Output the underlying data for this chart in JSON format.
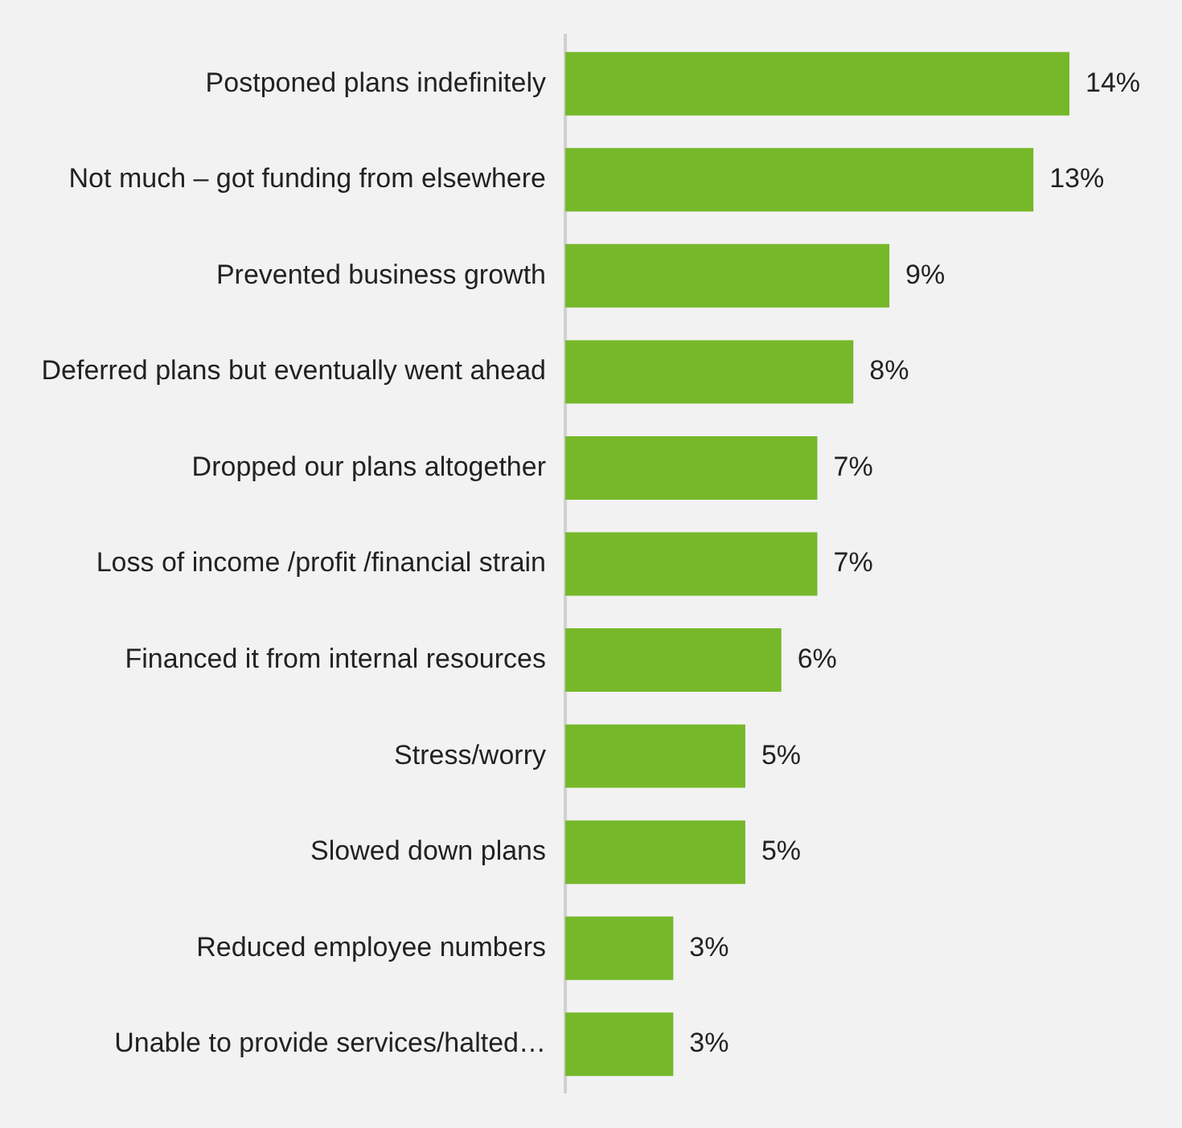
{
  "chart_data": {
    "type": "bar",
    "orientation": "horizontal",
    "categories": [
      "Postponed plans indefinitely",
      "Not much – got funding from elsewhere",
      "Prevented business growth",
      "Deferred plans but eventually went ahead",
      "Dropped our plans altogether",
      "Loss of income /profit /financial strain",
      "Financed it from internal resources",
      "Stress/worry",
      "Slowed down plans",
      "Reduced employee numbers",
      "Unable to provide services/halted…"
    ],
    "values": [
      14,
      13,
      9,
      8,
      7,
      7,
      6,
      5,
      5,
      3,
      3
    ],
    "value_labels": [
      "14%",
      "13%",
      "9%",
      "8%",
      "7%",
      "7%",
      "6%",
      "5%",
      "5%",
      "3%",
      "3%"
    ],
    "color": "#76b82a",
    "legend": false,
    "tick_labels": "y"
  }
}
